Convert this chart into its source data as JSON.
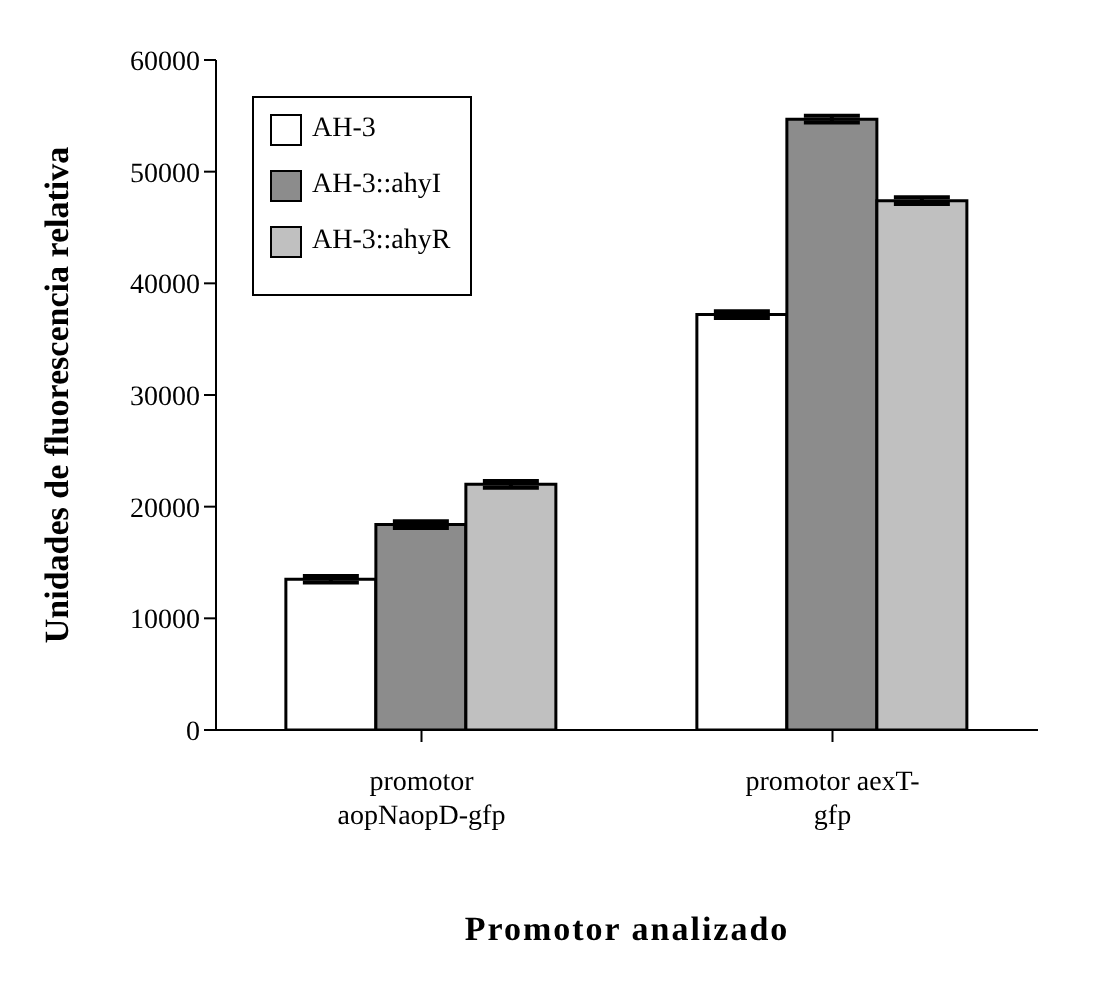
{
  "chart_data": {
    "type": "bar",
    "xlabel": "Promotor analizado",
    "ylabel": "Unidades de fluorescencia relativa",
    "categories": [
      "promotor aopNaopD-gfp",
      "promotor aexT-gfp"
    ],
    "series": [
      {
        "name": "AH-3",
        "color": "#ffffff",
        "values": [
          13500,
          37200
        ],
        "errors": [
          300,
          300
        ]
      },
      {
        "name": "AH-3::ahyI",
        "color": "#8c8c8c",
        "values": [
          18400,
          54700
        ],
        "errors": [
          300,
          300
        ]
      },
      {
        "name": "AH-3::ahyR",
        "color": "#c0c0c0",
        "values": [
          22000,
          47400
        ],
        "errors": [
          300,
          300
        ]
      }
    ],
    "ylim": [
      0,
      60000
    ],
    "yticks": [
      0,
      10000,
      20000,
      30000,
      40000,
      50000,
      60000
    ],
    "grid": false,
    "legend": "top left"
  }
}
